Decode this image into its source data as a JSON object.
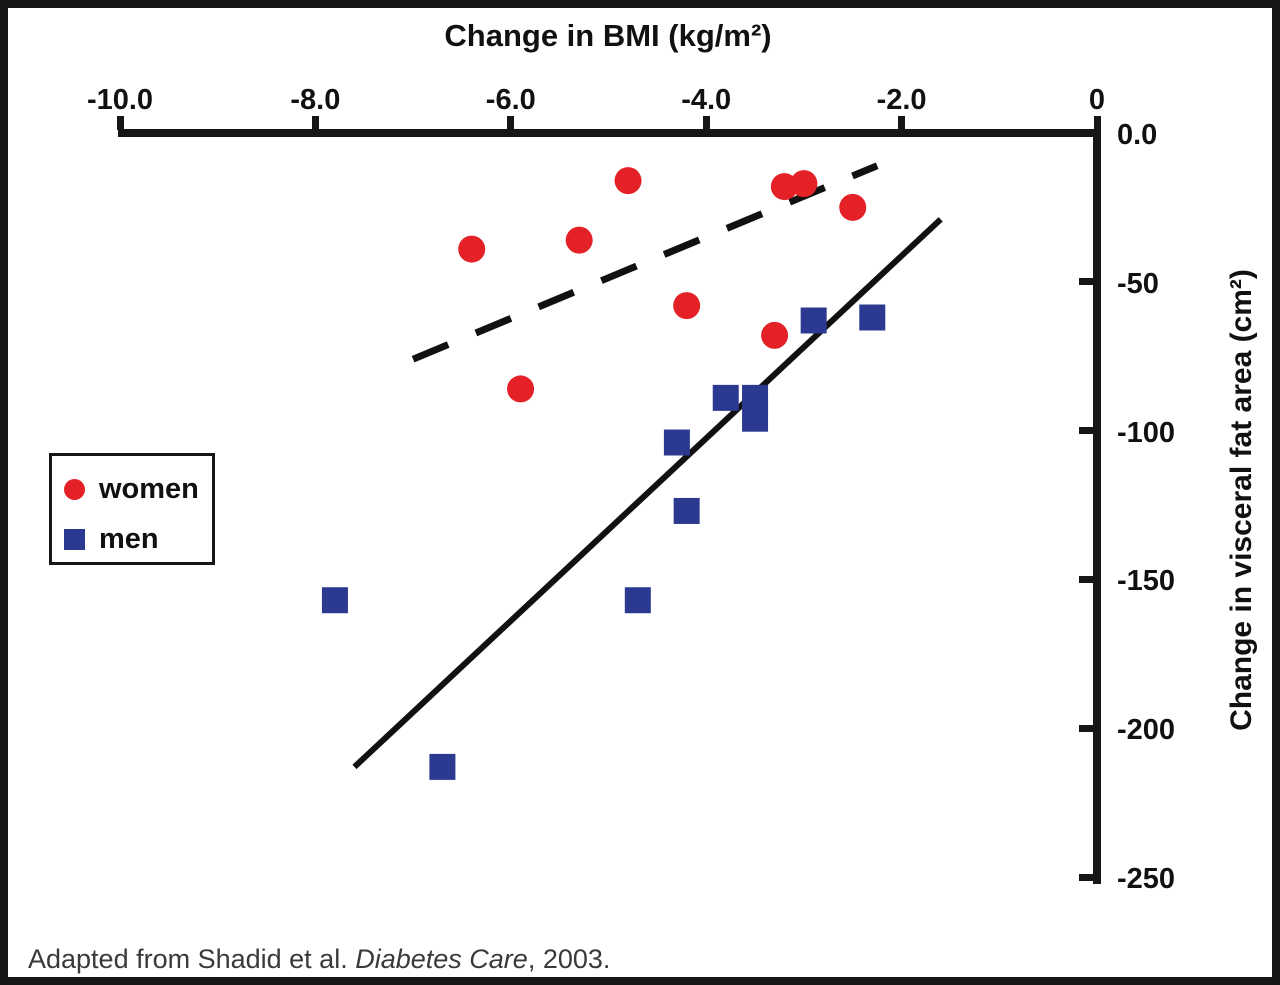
{
  "chart_data": {
    "type": "scatter",
    "title": "Change in BMI (kg/m²)",
    "xlabel": "Change in BMI (kg/m²)",
    "ylabel": "Change in visceral fat area (cm²)",
    "xlim": [
      -10,
      0
    ],
    "ylim": [
      -250,
      0
    ],
    "x_axis_position": "top",
    "y_axis_position": "right",
    "grid": false,
    "x_ticks": [
      -10,
      -8,
      -6,
      -4,
      -2,
      0
    ],
    "x_tick_labels": [
      "-10.0",
      "-8.0",
      "-6.0",
      "-4.0",
      "-2.0",
      "0"
    ],
    "y_ticks": [
      0,
      -50,
      -100,
      -150,
      -200,
      -250
    ],
    "y_tick_labels": [
      "0.0",
      "-50",
      "-100",
      "-150",
      "-200",
      "-250"
    ],
    "series": [
      {
        "name": "women",
        "marker": "circle",
        "color": "#e32127",
        "points": [
          [
            -4.8,
            -16
          ],
          [
            -3.2,
            -18
          ],
          [
            -3.0,
            -17
          ],
          [
            -2.5,
            -25
          ],
          [
            -6.4,
            -39
          ],
          [
            -5.3,
            -36
          ],
          [
            -4.2,
            -58
          ],
          [
            -3.3,
            -68
          ],
          [
            -5.9,
            -86
          ]
        ],
        "trend": {
          "style": "dashed",
          "color": "#111111",
          "x1": -7.0,
          "y1": -76,
          "x2": -2.25,
          "y2": -11
        }
      },
      {
        "name": "men",
        "marker": "square",
        "color": "#2b3990",
        "points": [
          [
            -2.9,
            -63
          ],
          [
            -2.3,
            -62
          ],
          [
            -3.8,
            -89
          ],
          [
            -3.5,
            -89
          ],
          [
            -3.5,
            -96
          ],
          [
            -4.3,
            -104
          ],
          [
            -4.2,
            -127
          ],
          [
            -7.8,
            -157
          ],
          [
            -4.7,
            -157
          ],
          [
            -6.7,
            -213
          ]
        ],
        "trend": {
          "style": "solid",
          "color": "#111111",
          "x1": -7.6,
          "y1": -213,
          "x2": -1.6,
          "y2": -29
        }
      }
    ],
    "legend": {
      "position": "middle-left",
      "entries": [
        {
          "label": "women",
          "marker": "circle",
          "color": "#e32127"
        },
        {
          "label": "men",
          "marker": "square",
          "color": "#2b3990"
        }
      ]
    }
  },
  "caption": {
    "prefix": "Adapted from Shadid et al. ",
    "italic": "Diabetes Care",
    "suffix": ", 2003."
  }
}
